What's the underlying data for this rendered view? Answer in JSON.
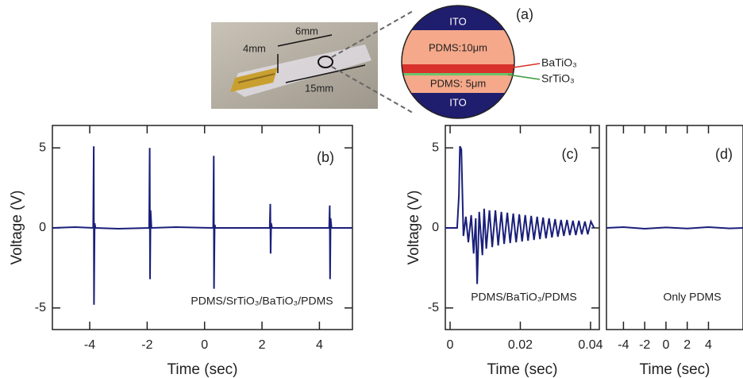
{
  "diagram": {
    "label": "(a)",
    "photo": {
      "width_label": "6mm",
      "height_label": "4mm",
      "length_label": "15mm"
    },
    "layers": {
      "top": "ITO",
      "upper": "PDMS:10μm",
      "lower": "PDMS: 5μm",
      "bottom": "ITO"
    },
    "callouts": {
      "red": "BaTiO₃",
      "green": "SrTiO₃"
    }
  },
  "chart_data": [
    {
      "type": "line",
      "panel_label": "(b)",
      "annotation": "PDMS/SrTiO₃/BaTiO₃/PDMS",
      "xlabel": "Time (sec)",
      "ylabel": "Voltage (V)",
      "color": "#1a1f7a",
      "x": [
        -5.3,
        -4.5,
        -3.88,
        -3.86,
        -3.85,
        -3.83,
        -3.8,
        -3.0,
        -1.93,
        -1.91,
        -1.9,
        -1.88,
        -1.85,
        -1.0,
        0.3,
        0.32,
        0.33,
        0.35,
        0.38,
        1.3,
        2.27,
        2.29,
        2.3,
        2.32,
        2.35,
        3.3,
        4.34,
        4.36,
        4.37,
        4.39,
        4.42,
        5.15
      ],
      "values": [
        0,
        0.05,
        0,
        5.1,
        -4.8,
        0.3,
        0,
        -0.05,
        0,
        5.0,
        -3.2,
        1.1,
        0,
        0.05,
        0,
        4.5,
        -3.8,
        0.2,
        0,
        0,
        0,
        1.5,
        -1.6,
        0.3,
        0,
        0,
        0,
        1.4,
        -3.2,
        0.6,
        0,
        0
      ],
      "xlim": [
        -5.3,
        5.15
      ],
      "ylim": [
        -6.35,
        6.4
      ],
      "xticks": [
        -4,
        -2,
        0,
        2,
        4
      ],
      "yticks": [
        -5,
        0,
        5
      ]
    },
    {
      "type": "line",
      "panel_label": "(c)",
      "annotation": "PDMS/BaTiO₃/PDMS",
      "xlabel": "Time (sec)",
      "ylabel": "Voltage (V)",
      "color": "#1a1f7a",
      "x": [
        -0.0014,
        0.002,
        0.0025,
        0.0028,
        0.0032,
        0.0038,
        0.0045,
        0.0052,
        0.006,
        0.0067,
        0.0073,
        0.0077,
        0.0083,
        0.0092,
        0.0097,
        0.0103,
        0.0112,
        0.012,
        0.0129,
        0.0137,
        0.0146,
        0.0154,
        0.0163,
        0.0171,
        0.018,
        0.0188,
        0.0197,
        0.0205,
        0.0214,
        0.0222,
        0.0231,
        0.0239,
        0.0248,
        0.0256,
        0.0265,
        0.0273,
        0.0282,
        0.029,
        0.0299,
        0.0307,
        0.0316,
        0.0324,
        0.0333,
        0.0341,
        0.035,
        0.0358,
        0.0367,
        0.0375,
        0.0384,
        0.0392,
        0.0401,
        0.041
      ],
      "values": [
        0,
        0,
        2,
        5.1,
        4.9,
        -0.5,
        0.7,
        -0.9,
        0.8,
        -1.6,
        0.6,
        -3.5,
        1.0,
        -1.7,
        1.2,
        -1.3,
        1.1,
        -1.2,
        1.1,
        -1.1,
        1.0,
        -1.0,
        0.95,
        -0.95,
        0.9,
        -0.9,
        0.85,
        -0.85,
        0.8,
        -0.8,
        0.75,
        -0.75,
        0.7,
        -0.7,
        0.65,
        -0.65,
        0.6,
        -0.6,
        0.55,
        -0.55,
        0.5,
        -0.5,
        0.5,
        -0.45,
        0.45,
        -0.45,
        0.45,
        -0.4,
        0.4,
        -0.4,
        0.4,
        0
      ],
      "xlim": [
        -0.00136,
        0.0425
      ],
      "ylim": [
        -6.35,
        6.4
      ],
      "xticks": [
        0,
        0.02,
        0.04
      ],
      "yticks": [
        -5,
        0,
        5
      ]
    },
    {
      "type": "line",
      "panel_label": "(d)",
      "annotation": "Only PDMS",
      "xlabel": "Time (sec)",
      "color": "#1a1f7a",
      "x": [
        -5.6,
        -4,
        -2,
        0,
        2,
        4,
        6,
        7.25
      ],
      "values": [
        0,
        0.05,
        -0.05,
        0.03,
        -0.04,
        0.05,
        -0.03,
        0
      ],
      "xlim": [
        -5.6,
        7.25
      ],
      "ylim": [
        -6.35,
        6.4
      ],
      "xticks": [
        -4,
        -2,
        0,
        2,
        4
      ]
    }
  ]
}
